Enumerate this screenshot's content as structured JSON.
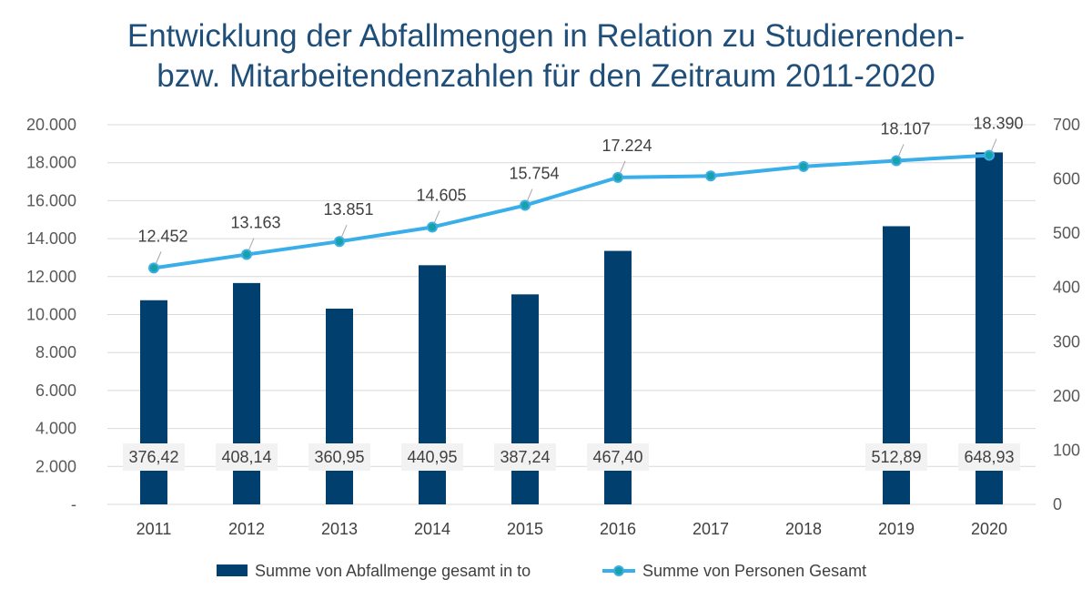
{
  "chart_data": {
    "type": "bar+line",
    "title_lines": [
      "Entwicklung der Abfallmengen in Relation zu Studierenden-",
      "bzw. Mitarbeitendenzahlen für den Zeitraum 2011-2020"
    ],
    "categories": [
      "2011",
      "2012",
      "2013",
      "2014",
      "2015",
      "2016",
      "2017",
      "2018",
      "2019",
      "2020"
    ],
    "y_left": {
      "ylim": [
        0,
        20000
      ],
      "ticks": [
        0,
        2000,
        4000,
        6000,
        8000,
        10000,
        12000,
        14000,
        16000,
        18000,
        20000
      ],
      "tick_labels": [
        "-",
        "2.000",
        "4.000",
        "6.000",
        "8.000",
        "10.000",
        "12.000",
        "14.000",
        "16.000",
        "18.000",
        "20.000"
      ]
    },
    "y_right": {
      "ylim": [
        0,
        700
      ],
      "ticks": [
        0,
        100,
        200,
        300,
        400,
        500,
        600,
        700
      ],
      "tick_labels": [
        "0",
        "100",
        "200",
        "300",
        "400",
        "500",
        "600",
        "700"
      ]
    },
    "grid": true,
    "legend_position": "bottom",
    "series": [
      {
        "name": "Summe von Abfallmenge gesamt in to",
        "type": "bar",
        "axis": "right",
        "color": "#003f6e",
        "values": [
          376.42,
          408.14,
          360.95,
          440.95,
          387.24,
          467.4,
          null,
          null,
          512.89,
          648.93
        ],
        "labels": [
          "376,42",
          "408,14",
          "360,95",
          "440,95",
          "387,24",
          "467,40",
          "",
          "",
          "512,89",
          "648,93"
        ]
      },
      {
        "name": "Summe von Personen Gesamt",
        "type": "line",
        "axis": "left",
        "color": "#3aaee8",
        "marker_color": "#17a1a8",
        "values": [
          12452,
          13163,
          13851,
          14605,
          15754,
          17224,
          17300,
          17800,
          18107,
          18390
        ],
        "labels": [
          "12.452",
          "13.163",
          "13.851",
          "14.605",
          "15.754",
          "17.224",
          "",
          "",
          "18.107",
          "18.390"
        ]
      }
    ]
  }
}
